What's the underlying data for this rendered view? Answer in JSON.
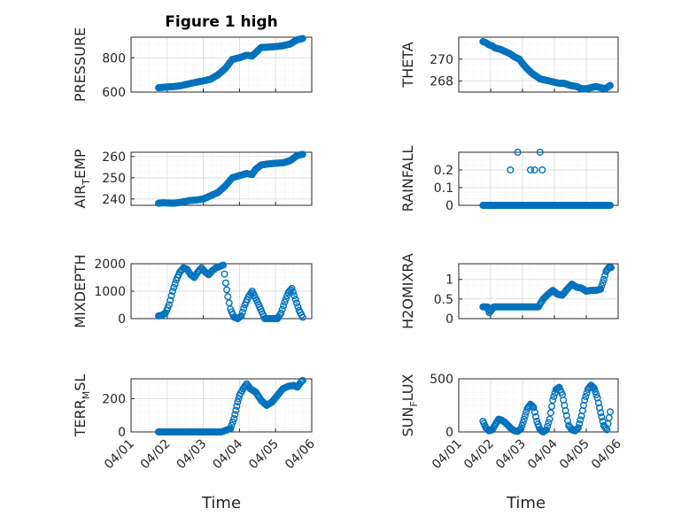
{
  "chart_data": [
    {
      "type": "scatter",
      "title": "Figure 1 high",
      "ylabel": "PRESSURE",
      "ylim": [
        600,
        920
      ],
      "yticks": [
        600,
        800
      ],
      "xlim": [
        0,
        5
      ],
      "xtick_labels": [
        "04/01",
        "04/02",
        "04/03",
        "04/04",
        "04/05",
        "04/06"
      ],
      "x": [
        0.76,
        0.9,
        1.0,
        1.2,
        1.4,
        1.6,
        1.8,
        2.0,
        2.2,
        2.4,
        2.6,
        2.8,
        3.0,
        3.2,
        3.35,
        3.45,
        3.6,
        3.8,
        4.0,
        4.2,
        4.4,
        4.6,
        4.75
      ],
      "y": [
        625,
        628,
        630,
        632,
        638,
        648,
        657,
        665,
        675,
        700,
        735,
        790,
        800,
        815,
        810,
        830,
        860,
        862,
        865,
        870,
        880,
        905,
        912
      ]
    },
    {
      "type": "scatter",
      "title": "",
      "ylabel": "THETA",
      "ylim": [
        267,
        272
      ],
      "yticks": [
        268,
        270
      ],
      "xlim": [
        0,
        5
      ],
      "xtick_labels": [
        "04/01",
        "04/02",
        "04/03",
        "04/04",
        "04/05",
        "04/06"
      ],
      "x": [
        0.76,
        0.85,
        0.95,
        1.05,
        1.15,
        1.3,
        1.45,
        1.6,
        1.75,
        1.9,
        2.0,
        2.15,
        2.3,
        2.45,
        2.55,
        2.7,
        2.85,
        3.0,
        3.15,
        3.3,
        3.5,
        3.7,
        3.85,
        4.0,
        4.15,
        4.3,
        4.45,
        4.6,
        4.75
      ],
      "y": [
        271.6,
        271.5,
        271.3,
        271.2,
        271.0,
        270.9,
        270.7,
        270.5,
        270.2,
        270.0,
        269.6,
        269.1,
        268.7,
        268.4,
        268.2,
        268.1,
        268.0,
        267.9,
        267.8,
        267.8,
        267.6,
        267.5,
        267.3,
        267.3,
        267.4,
        267.5,
        267.4,
        267.3,
        267.6
      ]
    },
    {
      "type": "scatter",
      "title": "",
      "ylabel": "AIR_TEMP",
      "ylim": [
        237,
        262
      ],
      "yticks": [
        240,
        250,
        260
      ],
      "xlim": [
        0,
        5
      ],
      "xtick_labels": [
        "04/01",
        "04/02",
        "04/03",
        "04/04",
        "04/05",
        "04/06"
      ],
      "x": [
        0.76,
        0.9,
        1.0,
        1.2,
        1.4,
        1.6,
        1.8,
        2.0,
        2.2,
        2.4,
        2.6,
        2.8,
        3.0,
        3.2,
        3.35,
        3.45,
        3.6,
        3.8,
        4.0,
        4.2,
        4.4,
        4.6,
        4.75
      ],
      "y": [
        238.0,
        238.2,
        238.1,
        238.0,
        238.5,
        239.2,
        239.5,
        240.0,
        241.5,
        243.0,
        246.0,
        250.0,
        251.0,
        252.0,
        251.5,
        254.0,
        256.0,
        256.5,
        256.8,
        257.0,
        258.0,
        260.5,
        261.0
      ]
    },
    {
      "type": "scatter",
      "title": "",
      "ylabel": "RAINFALL",
      "ylim": [
        0,
        0.3
      ],
      "yticks": [
        0,
        0.1,
        0.2
      ],
      "xlim": [
        0,
        5
      ],
      "xtick_labels": [
        "04/01",
        "04/02",
        "04/03",
        "04/04",
        "04/05",
        "04/06"
      ],
      "x": [
        0.76,
        1.0,
        1.25,
        1.5,
        1.75,
        2.0,
        2.25,
        2.5,
        2.75,
        3.0,
        3.25,
        3.5,
        3.75,
        4.0,
        4.25,
        4.5,
        4.75,
        1.62,
        1.85,
        2.25,
        2.38,
        2.55,
        2.62
      ],
      "y": [
        0,
        0,
        0,
        0,
        0,
        0,
        0,
        0,
        0,
        0,
        0,
        0,
        0,
        0,
        0,
        0,
        0,
        0.2,
        0.3,
        0.2,
        0.2,
        0.3,
        0.2
      ]
    },
    {
      "type": "scatter",
      "title": "",
      "ylabel": "MIXDEPTH",
      "ylim": [
        0,
        2000
      ],
      "yticks": [
        0,
        1000,
        2000
      ],
      "xlim": [
        0,
        5
      ],
      "xtick_labels": [
        "04/01",
        "04/02",
        "04/03",
        "04/04",
        "04/05",
        "04/06"
      ],
      "x": [
        0.76,
        0.85,
        0.95,
        1.05,
        1.15,
        1.25,
        1.35,
        1.45,
        1.55,
        1.65,
        1.75,
        1.85,
        1.95,
        2.05,
        2.15,
        2.25,
        2.35,
        2.45,
        2.55,
        2.62,
        2.68,
        2.75,
        2.85,
        2.95,
        3.05,
        3.15,
        3.25,
        3.35,
        3.5,
        3.7,
        3.9,
        4.05,
        4.15,
        4.25,
        4.35,
        4.45,
        4.55,
        4.65,
        4.75
      ],
      "y": [
        100,
        120,
        200,
        500,
        1000,
        1400,
        1700,
        1850,
        1800,
        1600,
        1500,
        1700,
        1850,
        1700,
        1600,
        1750,
        1850,
        1900,
        1950,
        1300,
        800,
        350,
        50,
        0,
        100,
        500,
        800,
        1000,
        600,
        0,
        0,
        0,
        200,
        600,
        950,
        1100,
        700,
        300,
        50
      ]
    },
    {
      "type": "scatter",
      "title": "",
      "ylabel": "H2OMIXRA",
      "ylim": [
        0,
        1.4
      ],
      "yticks": [
        0,
        0.5,
        1
      ],
      "xlim": [
        0,
        5
      ],
      "xtick_labels": [
        "04/01",
        "04/02",
        "04/03",
        "04/04",
        "04/05",
        "04/06"
      ],
      "x": [
        0.76,
        0.9,
        0.96,
        1.1,
        1.3,
        1.5,
        1.7,
        1.9,
        2.1,
        2.3,
        2.5,
        2.65,
        2.8,
        2.95,
        3.1,
        3.25,
        3.4,
        3.55,
        3.7,
        3.85,
        4.0,
        4.15,
        4.3,
        4.45,
        4.55,
        4.62,
        4.7,
        4.78
      ],
      "y": [
        0.3,
        0.3,
        0.15,
        0.3,
        0.3,
        0.3,
        0.3,
        0.3,
        0.3,
        0.3,
        0.3,
        0.5,
        0.62,
        0.72,
        0.62,
        0.6,
        0.75,
        0.88,
        0.8,
        0.78,
        0.7,
        0.72,
        0.72,
        0.75,
        1.0,
        1.2,
        1.3,
        1.3
      ]
    },
    {
      "type": "scatter",
      "title": "",
      "ylabel": "TERR_MSL",
      "ylim": [
        0,
        320
      ],
      "yticks": [
        0,
        200
      ],
      "xlim": [
        0,
        5
      ],
      "xtick_labels": [
        "04/01",
        "04/02",
        "04/03",
        "04/04",
        "04/05",
        "04/06"
      ],
      "x": [
        0.76,
        1.0,
        1.25,
        1.5,
        1.75,
        2.0,
        2.25,
        2.5,
        2.75,
        2.85,
        2.9,
        2.95,
        3.0,
        3.1,
        3.2,
        3.3,
        3.45,
        3.6,
        3.75,
        3.9,
        4.05,
        4.2,
        4.35,
        4.5,
        4.6,
        4.7,
        4.75
      ],
      "y": [
        0,
        0,
        0,
        0,
        0,
        0,
        0,
        0,
        20,
        80,
        130,
        180,
        220,
        260,
        290,
        260,
        240,
        190,
        160,
        180,
        220,
        260,
        275,
        280,
        270,
        300,
        310
      ]
    },
    {
      "type": "scatter",
      "title": "",
      "ylabel": "SUN_FLUX",
      "ylim": [
        0,
        500
      ],
      "yticks": [
        0,
        500
      ],
      "xlim": [
        0,
        5
      ],
      "xtick_labels": [
        "04/01",
        "04/02",
        "04/03",
        "04/04",
        "04/05",
        "04/06"
      ],
      "x": [
        0.76,
        0.85,
        0.95,
        1.05,
        1.15,
        1.25,
        1.35,
        1.45,
        1.55,
        1.65,
        1.75,
        1.85,
        1.95,
        2.05,
        2.15,
        2.25,
        2.35,
        2.45,
        2.55,
        2.65,
        2.75,
        2.85,
        2.95,
        3.05,
        3.15,
        3.25,
        3.35,
        3.45,
        3.55,
        3.65,
        3.75,
        3.85,
        3.95,
        4.05,
        4.15,
        4.25,
        4.35,
        4.45,
        4.55,
        4.65,
        4.75
      ],
      "y": [
        100,
        40,
        10,
        20,
        70,
        120,
        110,
        90,
        60,
        30,
        10,
        5,
        30,
        120,
        220,
        260,
        230,
        100,
        20,
        0,
        20,
        120,
        300,
        400,
        420,
        350,
        200,
        60,
        20,
        10,
        40,
        150,
        300,
        400,
        440,
        410,
        320,
        180,
        60,
        20,
        190
      ]
    }
  ],
  "shared_xlabel": "Time"
}
